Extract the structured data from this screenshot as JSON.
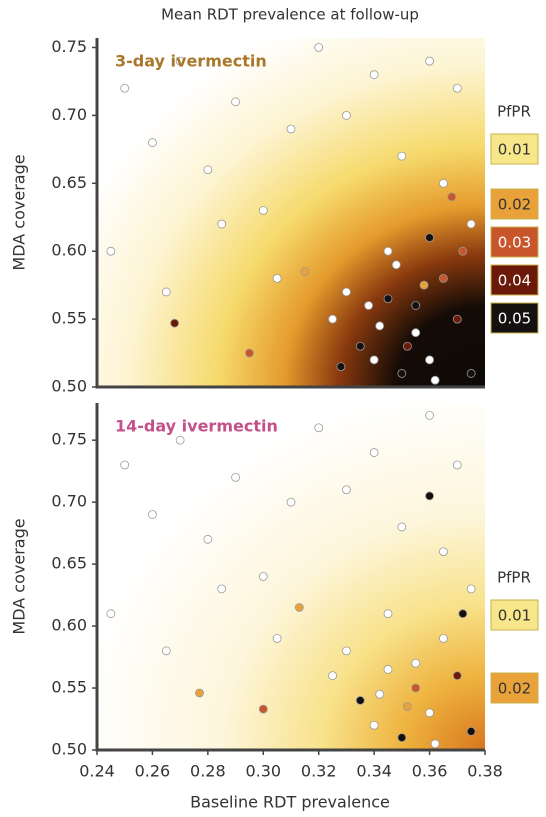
{
  "chart_data": [
    {
      "type": "scatter",
      "title": "Mean RDT prevalence at follow-up",
      "panel_label": "3-day ivermectin",
      "panel_label_color": "#a8772a",
      "ylabel": "MDA coverage",
      "xlim": [
        0.24,
        0.38
      ],
      "ylim": [
        0.5,
        0.757
      ],
      "yticks": [
        {
          "value": 0.5,
          "label": "0.50"
        },
        0.55,
        {
          "value": 0.6,
          "label": "0.60"
        },
        0.65,
        {
          "value": 0.7,
          "label": "0.70"
        },
        0.75
      ],
      "legend_title": "PfPR",
      "legend": [
        {
          "value": 0.01,
          "color": "#f7e68a"
        },
        {
          "value": 0.02,
          "color": "#e9a23a"
        },
        {
          "value": 0.03,
          "color": "#c9552b"
        },
        {
          "value": 0.04,
          "color": "#6b1a0a"
        },
        {
          "value": 0.05,
          "color": "#151010"
        }
      ],
      "x": [
        0.25,
        0.26,
        0.27,
        0.28,
        0.29,
        0.3,
        0.31,
        0.32,
        0.33,
        0.34,
        0.35,
        0.36,
        0.37,
        0.245,
        0.265,
        0.285,
        0.305,
        0.325,
        0.345,
        0.365,
        0.375,
        0.335,
        0.355,
        0.36,
        0.37,
        0.35,
        0.34,
        0.365,
        0.375,
        0.33,
        0.355,
        0.345,
        0.372,
        0.362,
        0.352,
        0.342,
        0.268,
        0.295,
        0.315,
        0.36,
        0.348,
        0.358,
        0.368,
        0.338,
        0.328
      ],
      "y": [
        0.72,
        0.68,
        0.74,
        0.66,
        0.71,
        0.63,
        0.69,
        0.75,
        0.7,
        0.73,
        0.67,
        0.74,
        0.72,
        0.6,
        0.57,
        0.62,
        0.58,
        0.55,
        0.6,
        0.65,
        0.62,
        0.53,
        0.56,
        0.52,
        0.55,
        0.51,
        0.52,
        0.58,
        0.51,
        0.57,
        0.54,
        0.565,
        0.6,
        0.505,
        0.53,
        0.545,
        0.547,
        0.525,
        0.585,
        0.61,
        0.59,
        0.575,
        0.64,
        0.56,
        0.515
      ],
      "colors": [
        "#ffffff",
        "#ffffff",
        "#ffffff",
        "#ffffff",
        "#ffffff",
        "#ffffff",
        "#ffffff",
        "#ffffff",
        "#ffffff",
        "#ffffff",
        "#ffffff",
        "#ffffff",
        "#ffffff",
        "#ffffff",
        "#ffffff",
        "#ffffff",
        "#ffffff",
        "#ffffff",
        "#ffffff",
        "#ffffff",
        "#ffffff",
        "#151010",
        "#151010",
        "#ffffff",
        "#6b1a0a",
        "#151010",
        "#ffffff",
        "#c9552b",
        "#151010",
        "#ffffff",
        "#ffffff",
        "#151010",
        "#c9552b",
        "#ffffff",
        "#6b1a0a",
        "#ffffff",
        "#6b1a0a",
        "#c9552b",
        "#e9a23a",
        "#151010",
        "#ffffff",
        "#e9a23a",
        "#c9552b",
        "#ffffff",
        "#151010"
      ]
    },
    {
      "type": "scatter",
      "panel_label": "14-day ivermectin",
      "panel_label_color": "#c4508a",
      "xlabel": "Baseline RDT prevalence",
      "ylabel": "MDA coverage",
      "xlim": [
        0.24,
        0.38
      ],
      "ylim": [
        0.5,
        0.78
      ],
      "xticks": [
        0.24,
        0.26,
        0.28,
        {
          "value": 0.3,
          "label": "0.30"
        },
        0.32,
        0.34,
        0.36,
        0.38
      ],
      "yticks": [
        {
          "value": 0.5,
          "label": "0.50"
        },
        0.55,
        {
          "value": 0.6,
          "label": "0.60"
        },
        0.65,
        {
          "value": 0.7,
          "label": "0.70"
        },
        0.75
      ],
      "legend_title": "PfPR",
      "legend": [
        {
          "value": 0.01,
          "color": "#f7e68a"
        },
        {
          "value": 0.02,
          "color": "#e9a23a"
        }
      ],
      "x": [
        0.25,
        0.26,
        0.27,
        0.28,
        0.29,
        0.3,
        0.31,
        0.32,
        0.33,
        0.34,
        0.35,
        0.36,
        0.37,
        0.245,
        0.265,
        0.285,
        0.305,
        0.325,
        0.345,
        0.365,
        0.375,
        0.335,
        0.355,
        0.36,
        0.37,
        0.35,
        0.34,
        0.365,
        0.375,
        0.33,
        0.355,
        0.345,
        0.372,
        0.362,
        0.352,
        0.342,
        0.277,
        0.3,
        0.313,
        0.36
      ],
      "y": [
        0.73,
        0.69,
        0.75,
        0.67,
        0.72,
        0.64,
        0.7,
        0.76,
        0.71,
        0.74,
        0.68,
        0.77,
        0.73,
        0.61,
        0.58,
        0.63,
        0.59,
        0.56,
        0.61,
        0.66,
        0.63,
        0.54,
        0.57,
        0.53,
        0.56,
        0.51,
        0.52,
        0.59,
        0.515,
        0.58,
        0.55,
        0.565,
        0.61,
        0.505,
        0.535,
        0.545,
        0.546,
        0.533,
        0.615,
        0.705
      ],
      "colors": [
        "#ffffff",
        "#ffffff",
        "#ffffff",
        "#ffffff",
        "#ffffff",
        "#ffffff",
        "#ffffff",
        "#ffffff",
        "#ffffff",
        "#ffffff",
        "#ffffff",
        "#ffffff",
        "#ffffff",
        "#ffffff",
        "#ffffff",
        "#ffffff",
        "#ffffff",
        "#ffffff",
        "#ffffff",
        "#ffffff",
        "#ffffff",
        "#151010",
        "#ffffff",
        "#ffffff",
        "#6b1a0a",
        "#151010",
        "#ffffff",
        "#ffffff",
        "#151010",
        "#ffffff",
        "#c9552b",
        "#ffffff",
        "#151010",
        "#ffffff",
        "#e9a23a",
        "#ffffff",
        "#e9a23a",
        "#c9552b",
        "#e9a23a",
        "#151010"
      ]
    }
  ]
}
